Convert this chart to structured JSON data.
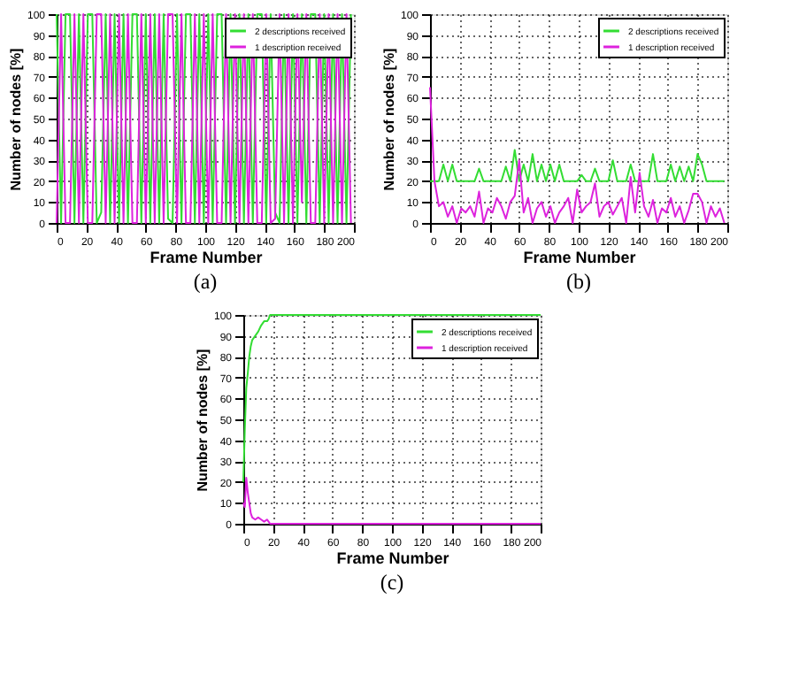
{
  "chart_data": [
    {
      "type": "line",
      "title": "(a)",
      "xlabel": "Frame Number",
      "ylabel": "Number of nodes [%]",
      "xlim": [
        0,
        200
      ],
      "ylim": [
        0,
        100
      ],
      "xticks": [
        0,
        20,
        40,
        60,
        80,
        100,
        120,
        140,
        160,
        180,
        200
      ],
      "yticks": [
        0,
        10,
        20,
        30,
        40,
        50,
        60,
        70,
        80,
        90,
        100
      ],
      "grid": true,
      "legend": "top right",
      "line_style": "solid",
      "x": [
        0,
        3,
        6,
        9,
        12,
        15,
        18,
        21,
        24,
        27,
        30,
        33,
        36,
        39,
        42,
        45,
        48,
        51,
        54,
        57,
        60,
        63,
        66,
        69,
        72,
        75,
        78,
        81,
        84,
        87,
        90,
        93,
        96,
        99,
        102,
        105,
        108,
        111,
        114,
        117,
        120,
        123,
        126,
        129,
        132,
        135,
        138,
        141,
        144,
        147,
        150,
        153,
        156,
        159,
        162,
        165,
        168,
        171,
        174,
        177,
        180,
        183,
        186,
        189,
        192,
        195,
        198
      ],
      "series": [
        {
          "name": "2 descriptions received",
          "color": "#33dd33",
          "values": [
            100,
            0,
            100,
            100,
            0,
            100,
            0,
            100,
            100,
            0,
            5,
            100,
            0,
            100,
            0,
            100,
            0,
            100,
            100,
            0,
            100,
            0,
            100,
            0,
            100,
            2,
            0,
            100,
            0,
            100,
            100,
            0,
            100,
            0,
            100,
            0,
            100,
            100,
            0,
            100,
            0,
            100,
            0,
            100,
            0,
            100,
            100,
            0,
            100,
            5,
            0,
            100,
            0,
            100,
            0,
            100,
            0,
            100,
            100,
            0,
            100,
            0,
            100,
            0,
            100,
            0,
            100
          ]
        },
        {
          "name": "1 description received",
          "color": "#dd22dd",
          "values": [
            0,
            100,
            0,
            0,
            100,
            0,
            100,
            0,
            0,
            100,
            100,
            0,
            100,
            0,
            100,
            0,
            100,
            0,
            0,
            100,
            0,
            100,
            0,
            100,
            0,
            100,
            100,
            0,
            100,
            0,
            0,
            100,
            0,
            100,
            0,
            100,
            0,
            0,
            100,
            0,
            100,
            0,
            100,
            0,
            100,
            0,
            0,
            100,
            0,
            2,
            100,
            0,
            100,
            0,
            100,
            10,
            100,
            0,
            0,
            100,
            0,
            100,
            0,
            100,
            0,
            100,
            0
          ]
        }
      ]
    },
    {
      "type": "line",
      "title": "(b)",
      "xlabel": "Frame Number",
      "ylabel": "Number of nodes [%]",
      "xlim": [
        0,
        200
      ],
      "ylim": [
        0,
        100
      ],
      "xticks": [
        0,
        20,
        40,
        60,
        80,
        100,
        120,
        140,
        160,
        180,
        200
      ],
      "yticks": [
        0,
        10,
        20,
        30,
        40,
        50,
        60,
        70,
        80,
        90,
        100
      ],
      "grid": true,
      "legend": "top right",
      "line_style": "solid",
      "x": [
        0,
        3,
        6,
        9,
        12,
        15,
        18,
        21,
        24,
        27,
        30,
        33,
        36,
        39,
        42,
        45,
        48,
        51,
        54,
        57,
        60,
        63,
        66,
        69,
        72,
        75,
        78,
        81,
        84,
        87,
        90,
        93,
        96,
        99,
        102,
        105,
        108,
        111,
        114,
        117,
        120,
        123,
        126,
        129,
        132,
        135,
        138,
        141,
        144,
        147,
        150,
        153,
        156,
        159,
        162,
        165,
        168,
        171,
        174,
        177,
        180,
        183,
        186,
        189,
        192,
        195,
        198
      ],
      "series": [
        {
          "name": "2 descriptions received",
          "color": "#33dd33",
          "values": [
            20,
            20,
            20,
            28,
            20,
            28,
            20,
            20,
            20,
            20,
            20,
            26,
            20,
            20,
            20,
            20,
            20,
            27,
            20,
            35,
            20,
            28,
            20,
            33,
            20,
            28,
            20,
            28,
            20,
            28,
            20,
            20,
            20,
            20,
            23,
            20,
            20,
            26,
            20,
            20,
            20,
            30,
            20,
            20,
            20,
            28,
            20,
            20,
            20,
            20,
            33,
            20,
            20,
            20,
            28,
            20,
            27,
            20,
            27,
            20,
            33,
            28,
            20,
            20,
            20,
            20,
            20
          ]
        },
        {
          "name": "1 description received",
          "color": "#dd22dd",
          "values": [
            65,
            20,
            8,
            10,
            3,
            8,
            0,
            7,
            5,
            8,
            3,
            15,
            0,
            7,
            5,
            12,
            8,
            2,
            10,
            13,
            30,
            5,
            12,
            0,
            7,
            10,
            3,
            8,
            0,
            5,
            8,
            12,
            0,
            16,
            5,
            8,
            10,
            19,
            3,
            8,
            10,
            4,
            8,
            12,
            0,
            22,
            5,
            24,
            8,
            3,
            11,
            0,
            7,
            5,
            12,
            3,
            8,
            0,
            6,
            14,
            14,
            10,
            0,
            8,
            3,
            7,
            0
          ]
        }
      ]
    },
    {
      "type": "line",
      "title": "(c)",
      "xlabel": "Frame Number",
      "ylabel": "Number of nodes [%]",
      "xlim": [
        0,
        200
      ],
      "ylim": [
        0,
        100
      ],
      "xticks": [
        0,
        20,
        40,
        60,
        80,
        100,
        120,
        140,
        160,
        180,
        200
      ],
      "yticks": [
        0,
        10,
        20,
        30,
        40,
        50,
        60,
        70,
        80,
        90,
        100
      ],
      "grid": true,
      "legend": "top right",
      "line_style": "solid",
      "x": [
        0,
        1,
        2,
        3,
        4,
        5,
        6,
        8,
        10,
        12,
        14,
        16,
        17,
        18,
        200
      ],
      "series": [
        {
          "name": "2 descriptions received",
          "color": "#33dd33",
          "values": [
            20,
            45,
            65,
            72,
            80,
            85,
            88,
            90,
            92,
            95,
            97,
            97,
            98,
            100,
            100
          ]
        },
        {
          "name": "1 description received",
          "color": "#dd22dd",
          "values": [
            10,
            8,
            22,
            15,
            10,
            5,
            3,
            2,
            3,
            2,
            1,
            2,
            1,
            0,
            0
          ]
        }
      ]
    }
  ]
}
